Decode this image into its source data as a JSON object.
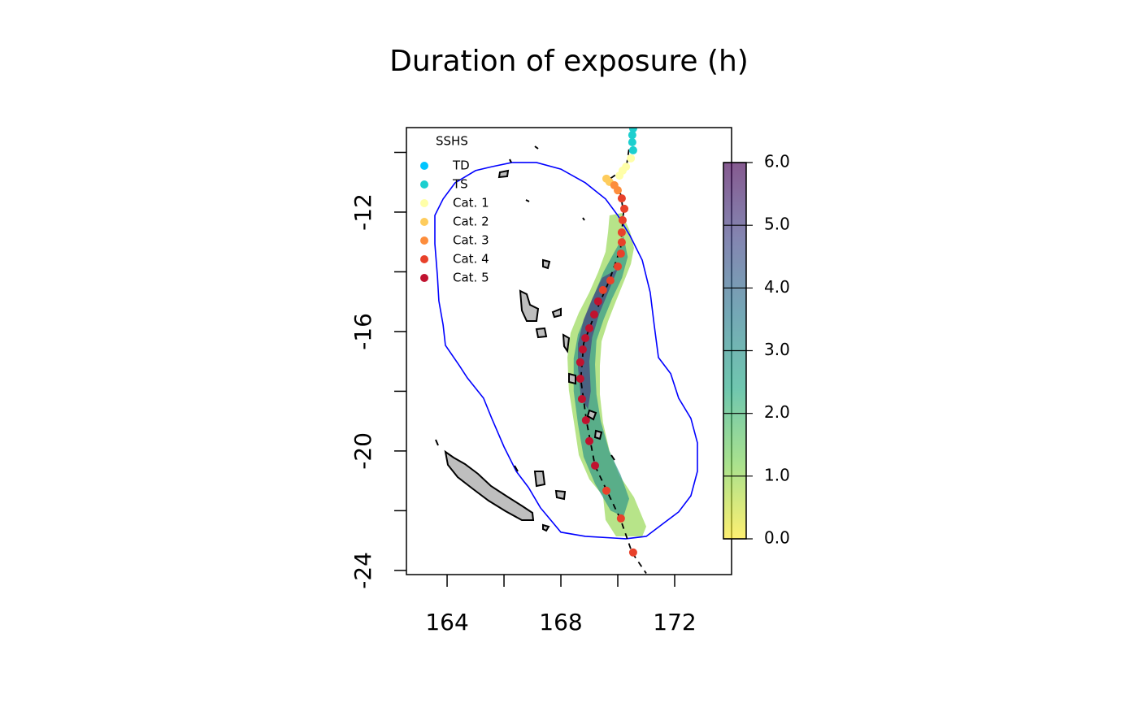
{
  "chart_data": {
    "type": "map",
    "title": "Duration of exposure (h)",
    "xlim": [
      162.57,
      174.0
    ],
    "ylim": [
      -24.14,
      -9.17
    ],
    "xticks": [
      164,
      168,
      172
    ],
    "xticks_unlabeled": [
      166,
      170
    ],
    "yticks": [
      -12,
      -16,
      -20,
      -24
    ],
    "yticks_unlabeled": [
      -10,
      -14,
      -18,
      -22
    ],
    "legend_title": "SSHS",
    "legend_position": "topleft",
    "series": [
      {
        "name": "TD",
        "color": "#00c5ff",
        "x": [],
        "y": []
      },
      {
        "name": "TS",
        "color": "#1ccfcf",
        "x": [
          170.54,
          170.51,
          170.51,
          170.54
        ],
        "y": [
          -9.2,
          -9.42,
          -9.66,
          -9.93
        ]
      },
      {
        "name": "Cat. 1",
        "color": "#ffffa8",
        "x": [
          170.46,
          170.29,
          170.17,
          170.06
        ],
        "y": [
          -10.2,
          -10.48,
          -10.61,
          -10.78
        ]
      },
      {
        "name": "Cat. 2",
        "color": "#fecc5c",
        "x": [
          169.6,
          169.71
        ],
        "y": [
          -10.88,
          -10.99
        ]
      },
      {
        "name": "Cat. 3",
        "color": "#fd8d3c",
        "x": [
          169.88,
          170.0
        ],
        "y": [
          -11.1,
          -11.27
        ]
      },
      {
        "name": "Cat. 4",
        "color": "#e8412a",
        "x": [
          170.14,
          170.23,
          170.17,
          170.14,
          170.14,
          170.11,
          170.0,
          169.74,
          169.48,
          169.6,
          170.11,
          170.54
        ],
        "y": [
          -11.54,
          -11.89,
          -12.27,
          -12.68,
          -13.01,
          -13.39,
          -13.82,
          -14.29,
          -14.61,
          -21.33,
          -22.26,
          -23.4
        ]
      },
      {
        "name": "Cat. 5",
        "color": "#c0122f",
        "x": [
          169.31,
          169.17,
          169.0,
          168.86,
          168.77,
          168.68,
          168.68,
          168.74,
          168.88,
          169.0,
          169.2
        ],
        "y": [
          -14.99,
          -15.43,
          -15.89,
          -16.22,
          -16.6,
          -17.03,
          -17.58,
          -18.26,
          -18.97,
          -19.67,
          -20.49
        ]
      }
    ],
    "track": {
      "color": "#000000",
      "x": [
        170.5,
        170.3,
        169.7,
        170.1,
        170.2,
        170.1,
        169.7,
        169.2,
        168.8,
        168.7,
        168.9,
        169.2,
        169.6,
        170.1,
        170.5,
        171.0
      ],
      "y": [
        -9.2,
        -10.5,
        -10.9,
        -11.4,
        -12.0,
        -13.2,
        -14.3,
        -15.4,
        -16.4,
        -17.6,
        -19.0,
        -20.5,
        -21.3,
        -22.3,
        -23.4,
        -24.1
      ]
    },
    "boundary": {
      "color": "#0000ff",
      "x": [
        163.57,
        163.86,
        164.28,
        165.0,
        165.57,
        166.28,
        167.14,
        168.0,
        168.86,
        169.57,
        170.0,
        170.43,
        170.86,
        171.14,
        171.28,
        171.43,
        171.86,
        172.14,
        172.57,
        172.8,
        172.8,
        172.57,
        172.14,
        171.57,
        171.0,
        170.28,
        168.86,
        168.0,
        167.28,
        166.86,
        166.43,
        166.0,
        165.57,
        165.28,
        164.71,
        164.43,
        163.94,
        163.86,
        163.71,
        163.66,
        163.57
      ],
      "y": [
        -12.11,
        -11.56,
        -11.02,
        -10.61,
        -10.48,
        -10.34,
        -10.34,
        -10.56,
        -11.02,
        -11.56,
        -12.11,
        -12.79,
        -13.61,
        -14.69,
        -15.78,
        -16.87,
        -17.41,
        -18.23,
        -18.91,
        -19.73,
        -20.68,
        -21.5,
        -22.04,
        -22.45,
        -22.86,
        -22.94,
        -22.86,
        -22.72,
        -21.9,
        -21.22,
        -20.68,
        -19.86,
        -18.91,
        -18.23,
        -17.55,
        -17.14,
        -16.46,
        -15.78,
        -14.97,
        -14.15,
        -13.06
      ]
    },
    "exposure": [
      {
        "value": 1,
        "x": [
          169.71,
          170.14,
          170.43,
          170.57,
          170.46,
          170.23,
          169.94,
          169.66,
          169.43,
          169.37,
          169.37,
          169.48,
          169.71,
          170.06,
          170.57,
          171.0,
          170.86,
          169.94,
          169.57,
          169.48,
          169.0,
          168.63,
          168.46,
          168.28,
          168.23,
          168.34,
          168.63,
          169.0,
          169.31,
          169.57,
          169.66
        ],
        "y": [
          -12.11,
          -12.03,
          -12.65,
          -13.2,
          -13.74,
          -14.29,
          -14.97,
          -15.65,
          -16.33,
          -17.14,
          -18.1,
          -19.05,
          -20.0,
          -20.82,
          -21.55,
          -22.53,
          -22.86,
          -22.86,
          -22.31,
          -21.5,
          -20.95,
          -20.14,
          -19.05,
          -17.96,
          -16.87,
          -16.05,
          -15.37,
          -14.69,
          -14.01,
          -13.33,
          -12.65
        ]
      },
      {
        "value": 3,
        "x": [
          170.2,
          170.35,
          170.15,
          169.8,
          169.5,
          169.25,
          169.2,
          169.25,
          169.4,
          169.7,
          170.1,
          170.4,
          170.2,
          169.75,
          169.2,
          168.8,
          168.6,
          168.45,
          168.45,
          168.6,
          168.9,
          169.2,
          169.5,
          169.9
        ],
        "y": [
          -12.8,
          -13.5,
          -14.2,
          -14.9,
          -15.6,
          -16.3,
          -17.1,
          -18.1,
          -19.0,
          -20.0,
          -20.8,
          -21.6,
          -22.2,
          -22.0,
          -21.1,
          -20.2,
          -19.1,
          -18.0,
          -16.9,
          -16.1,
          -15.4,
          -14.7,
          -14.0,
          -13.3
        ]
      },
      {
        "value": 5,
        "x": [
          170.0,
          169.7,
          169.35,
          169.1,
          169.0,
          169.05,
          168.95,
          168.7,
          168.6,
          168.6,
          168.8,
          169.1,
          169.45
        ],
        "y": [
          -13.9,
          -14.6,
          -15.4,
          -16.2,
          -17.0,
          -18.0,
          -18.6,
          -18.2,
          -17.2,
          -16.4,
          -15.6,
          -14.9,
          -14.2
        ]
      }
    ],
    "colorbar": {
      "lim": [
        0,
        6
      ],
      "colors": [
        "#fde725",
        "#7ad151",
        "#22a884",
        "#2a788e",
        "#414487",
        "#440154"
      ],
      "alpha": 0.65,
      "ticks": [
        {
          "value": 0,
          "label": "0.0"
        },
        {
          "value": 1,
          "label": "1.0"
        },
        {
          "value": 2,
          "label": "2.0"
        },
        {
          "value": 3,
          "label": "3.0"
        },
        {
          "value": 4,
          "label": "4.0"
        },
        {
          "value": 5,
          "label": "5.0"
        },
        {
          "value": 6,
          "label": "6.0"
        }
      ]
    }
  }
}
